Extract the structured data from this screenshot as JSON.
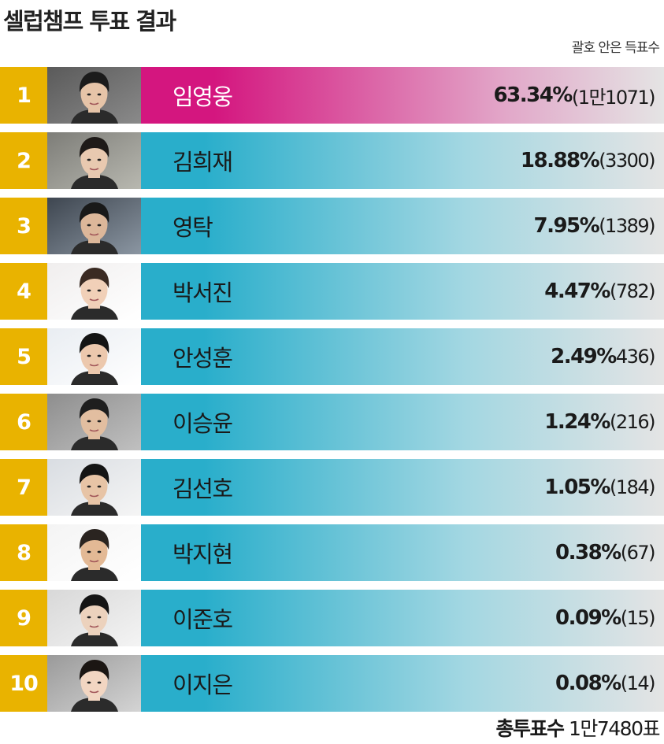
{
  "title": "셀럽챔프 투표 결과",
  "note": "괄호 안은 득표수",
  "total": {
    "label": "총투표수",
    "value": "1만7480표"
  },
  "colors": {
    "rank_bg": "#e9b300",
    "winner_bar": "#d4167f",
    "bar": "#29aecb",
    "bar_end": "#e4e4e4"
  },
  "chart_data": {
    "type": "bar",
    "title": "셀럽챔프 투표 결과",
    "unit": "%",
    "rows": [
      {
        "rank": "1",
        "name": "임영웅",
        "pct": "63.34%",
        "votes": "(1만1071)",
        "value": 63.34,
        "winner": true,
        "photo": "photo-1"
      },
      {
        "rank": "2",
        "name": "김희재",
        "pct": "18.88%",
        "votes": "(3300)",
        "value": 18.88,
        "winner": false,
        "photo": "photo-2"
      },
      {
        "rank": "3",
        "name": "영탁",
        "pct": "7.95%",
        "votes": "(1389)",
        "value": 7.95,
        "winner": false,
        "photo": "photo-3"
      },
      {
        "rank": "4",
        "name": "박서진",
        "pct": "4.47%",
        "votes": "(782)",
        "value": 4.47,
        "winner": false,
        "photo": "photo-4"
      },
      {
        "rank": "5",
        "name": "안성훈",
        "pct": "2.49%",
        "votes": "436)",
        "value": 2.49,
        "winner": false,
        "photo": "photo-5"
      },
      {
        "rank": "6",
        "name": "이승윤",
        "pct": "1.24%",
        "votes": "(216)",
        "value": 1.24,
        "winner": false,
        "photo": "photo-6"
      },
      {
        "rank": "7",
        "name": "김선호",
        "pct": "1.05%",
        "votes": "(184)",
        "value": 1.05,
        "winner": false,
        "photo": "photo-7"
      },
      {
        "rank": "8",
        "name": "박지현",
        "pct": "0.38%",
        "votes": "(67)",
        "value": 0.38,
        "winner": false,
        "photo": "photo-8"
      },
      {
        "rank": "9",
        "name": "이준호",
        "pct": "0.09%",
        "votes": "(15)",
        "value": 0.09,
        "winner": false,
        "photo": "photo-9"
      },
      {
        "rank": "10",
        "name": "이지은",
        "pct": "0.08%",
        "votes": "(14)",
        "value": 0.08,
        "winner": false,
        "photo": "photo-10"
      }
    ]
  }
}
